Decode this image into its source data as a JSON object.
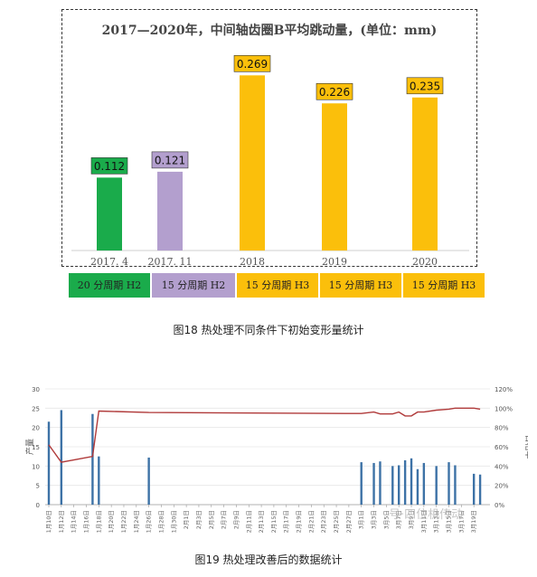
{
  "figure18": {
    "caption": "图18 热处理不同条件下初始变形量统计",
    "conditions": [
      {
        "label": "20 分周期 H2",
        "color": "#1aab4b"
      },
      {
        "label": "15 分周期 H2",
        "color": "#b39fce"
      },
      {
        "label": "15 分周期 H3",
        "color": "#fbbf0b"
      },
      {
        "label": "15 分周期 H3",
        "color": "#fbbf0b"
      },
      {
        "label": "15 分周期 H3",
        "color": "#fbbf0b"
      }
    ]
  },
  "figure19": {
    "caption": "图19 热处理改善后的数据统计"
  },
  "watermark": "号·四位机传动",
  "chart_data": [
    {
      "type": "bar",
      "title": "2017—2020年，中间轴齿圈B平均跳动量，(单位：mm)",
      "categories": [
        "2017. 4",
        "2017. 11",
        "2018",
        "2019",
        "2020"
      ],
      "values": [
        0.112,
        0.121,
        0.269,
        0.226,
        0.235
      ],
      "data_labels": [
        "0.112",
        "0.121",
        "0.269",
        "0.226",
        "0.235"
      ],
      "colors": [
        "#1aab4b",
        "#b39fce",
        "#fbbf0b",
        "#fbbf0b",
        "#fbbf0b"
      ],
      "ylim": [
        0,
        0.3
      ],
      "grid": false
    },
    {
      "type": "bar",
      "title": "",
      "ylabel": "产量",
      "y2label": "合格率",
      "yticks": [
        "0",
        "5",
        "10",
        "15",
        "20",
        "25",
        "30"
      ],
      "y2ticks": [
        "0%",
        "20%",
        "40%",
        "60%",
        "80%",
        "100%",
        "120%"
      ],
      "ylim": [
        0,
        30
      ],
      "y2lim": [
        0,
        1.2
      ],
      "categories": [
        "1月10日",
        "1月12日",
        "1月14日",
        "1月16日",
        "1月18日",
        "1月20日",
        "1月22日",
        "1月24日",
        "1月26日",
        "1月28日",
        "1月30日",
        "2月1日",
        "2月3日",
        "2月5日",
        "2月7日",
        "2月9日",
        "2月11日",
        "2月13日",
        "2月15日",
        "2月17日",
        "2月19日",
        "2月21日",
        "2月23日",
        "2月25日",
        "2月27日",
        "3月1日",
        "3月3日",
        "3月5日",
        "3月7日",
        "3月9日",
        "3月11日",
        "3月13日",
        "3月15日",
        "3月17日",
        "3月19日"
      ],
      "series": [
        {
          "kind": "bar",
          "color": "#3d72a6",
          "points": [
            {
              "x": "1月10日",
              "y": 21.5
            },
            {
              "x": "1月12日",
              "y": 24.5
            },
            {
              "x": "1月17日",
              "y": 23.5
            },
            {
              "x": "1月18日",
              "y": 12.5
            },
            {
              "x": "1月26日",
              "y": 12.2
            },
            {
              "x": "3月1日",
              "y": 11
            },
            {
              "x": "3月3日",
              "y": 10.8
            },
            {
              "x": "3月4日",
              "y": 11.2
            },
            {
              "x": "3月6日",
              "y": 10
            },
            {
              "x": "3月7日",
              "y": 10.2
            },
            {
              "x": "3月8日",
              "y": 11.5
            },
            {
              "x": "3月9日",
              "y": 12
            },
            {
              "x": "3月10日",
              "y": 9.2
            },
            {
              "x": "3月11日",
              "y": 10.8
            },
            {
              "x": "3月13日",
              "y": 10
            },
            {
              "x": "3月15日",
              "y": 11
            },
            {
              "x": "3月16日",
              "y": 10.2
            },
            {
              "x": "3月19日",
              "y": 8
            },
            {
              "x": "3月20日",
              "y": 7.8
            }
          ]
        },
        {
          "kind": "line",
          "axis": "right",
          "color": "#b03a3a",
          "points": [
            {
              "x": "1月10日",
              "y": 0.62
            },
            {
              "x": "1月12日",
              "y": 0.44
            },
            {
              "x": "1月17日",
              "y": 0.5
            },
            {
              "x": "1月18日",
              "y": 0.97
            },
            {
              "x": "1月26日",
              "y": 0.955
            },
            {
              "x": "2月27日",
              "y": 0.945
            },
            {
              "x": "3月1日",
              "y": 0.945
            },
            {
              "x": "3月3日",
              "y": 0.96
            },
            {
              "x": "3月4日",
              "y": 0.94
            },
            {
              "x": "3月6日",
              "y": 0.94
            },
            {
              "x": "3月7日",
              "y": 0.96
            },
            {
              "x": "3月8日",
              "y": 0.92
            },
            {
              "x": "3月9日",
              "y": 0.92
            },
            {
              "x": "3月10日",
              "y": 0.96
            },
            {
              "x": "3月11日",
              "y": 0.96
            },
            {
              "x": "3月13日",
              "y": 0.98
            },
            {
              "x": "3月15日",
              "y": 0.99
            },
            {
              "x": "3月16日",
              "y": 1.0
            },
            {
              "x": "3月19日",
              "y": 1.0
            },
            {
              "x": "3月20日",
              "y": 0.99
            }
          ]
        }
      ]
    }
  ]
}
